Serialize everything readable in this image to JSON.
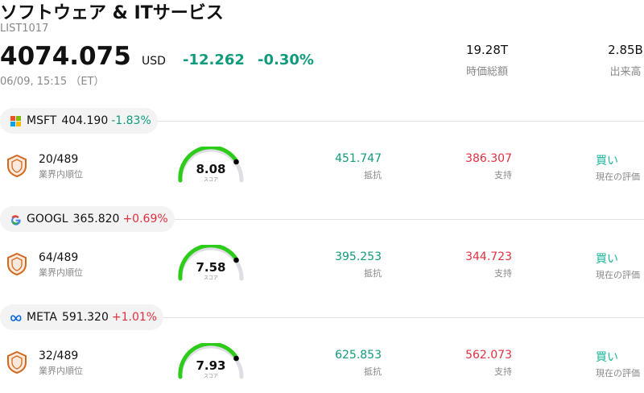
{
  "header": {
    "title": "ソフトウェア & ITサービス",
    "code": "LIST1017",
    "price": "4074.075",
    "currency": "USD",
    "change": "-12.262",
    "change_pct": "-0.30%",
    "datetime": "06/09, 15:15 （ET）",
    "stats": [
      {
        "value": "19.28T",
        "label": "時価総額"
      },
      {
        "value": "2.85B",
        "label": "出来高"
      }
    ]
  },
  "stocks": [
    {
      "ticker": "MSFT",
      "price": "404.190",
      "change": "-1.83%",
      "rank": "20/489",
      "rank_label": "業界内順位",
      "score": "8.08",
      "score_label": "スコア",
      "resistance": "451.747",
      "resistance_label": "抵抗",
      "support": "386.307",
      "support_label": "支持",
      "rating": "買い",
      "rating_label": "現在の評価"
    },
    {
      "ticker": "GOOGL",
      "price": "365.820",
      "change": "+0.69%",
      "rank": "64/489",
      "rank_label": "業界内順位",
      "score": "7.58",
      "score_label": "スコア",
      "resistance": "395.253",
      "resistance_label": "抵抗",
      "support": "344.723",
      "support_label": "支持",
      "rating": "買い",
      "rating_label": "現在の評価"
    },
    {
      "ticker": "META",
      "price": "591.320",
      "change": "+1.01%",
      "rank": "32/489",
      "rank_label": "業界内順位",
      "score": "7.93",
      "score_label": "スコア",
      "resistance": "625.853",
      "resistance_label": "抵抗",
      "support": "562.073",
      "support_label": "支持",
      "rating": "買い",
      "rating_label": "現在の評価"
    }
  ]
}
